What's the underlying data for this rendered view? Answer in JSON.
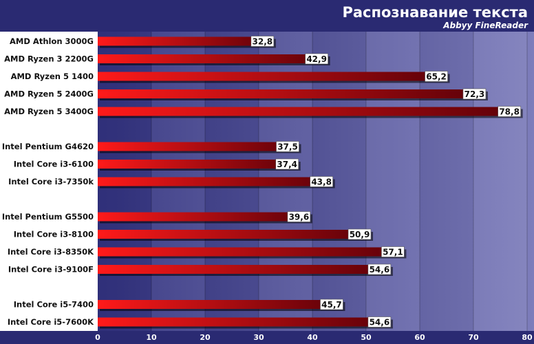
{
  "chart_data": {
    "type": "bar",
    "orientation": "horizontal",
    "title": "Распознавание текста",
    "subtitle": "Abbyy FineReader",
    "categories": [
      "AMD Athlon 3000G",
      "AMD Ryzen 3 2200G",
      "AMD Ryzen 5 1400",
      "AMD Ryzen 5 2400G",
      "AMD Ryzen 5 3400G",
      "Intel Pentium G4620",
      "Intel Core i3-6100",
      "Intel Core i3-7350k",
      "Intel Pentium G5500",
      "Intel Core i3-8100",
      "Intel Core i3-8350K",
      "Intel Core i3-9100F",
      "Intel Core i5-7400",
      "Intel Core i5-7600K"
    ],
    "groups": [
      5,
      3,
      4,
      2
    ],
    "values": [
      32.8,
      42.9,
      65.2,
      72.3,
      78.8,
      37.5,
      37.4,
      43.8,
      39.6,
      50.9,
      57.1,
      54.6,
      45.7,
      54.6
    ],
    "value_labels": [
      "32,8",
      "42,9",
      "65,2",
      "72,3",
      "78,8",
      "37,5",
      "37,4",
      "43,8",
      "39,6",
      "50,9",
      "57,1",
      "54,6",
      "45,7",
      "54,6"
    ],
    "xlim": [
      0,
      80
    ],
    "xticks": [
      0,
      10,
      20,
      30,
      40,
      50,
      60,
      70,
      80
    ],
    "grid": true,
    "colors": {
      "bar_light": "#ff1a1a",
      "bar_dark": "#5c0008",
      "plot_band_dark": "#31317e",
      "plot_band_light": "#7d7dbb",
      "label_panel": "#ffffff",
      "header_bg": "#2a2a72",
      "text_light": "#ffffff",
      "text_dark": "#111111"
    }
  }
}
